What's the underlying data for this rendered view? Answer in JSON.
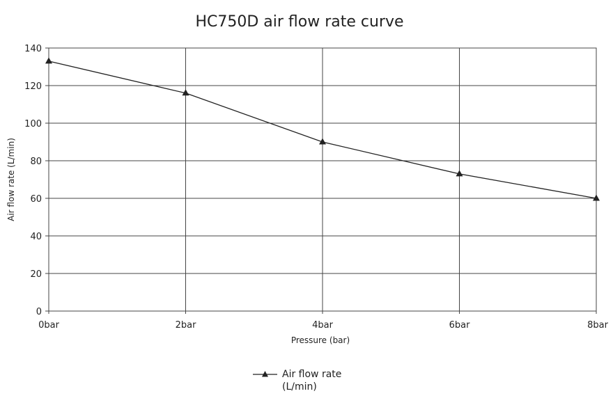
{
  "chart_data": {
    "type": "line",
    "title": "HC750D air flow rate curve",
    "xlabel": "Pressure (bar)",
    "ylabel": "Air flow rate (L/min)",
    "categories": [
      "0bar",
      "2bar",
      "4bar",
      "6bar",
      "8bar"
    ],
    "x": [
      0,
      2,
      4,
      6,
      8
    ],
    "xlim": [
      0,
      8
    ],
    "ylim": [
      0,
      140
    ],
    "yticks": [
      0,
      20,
      40,
      60,
      80,
      100,
      120,
      140
    ],
    "grid": true,
    "legend_position": "bottom",
    "series": [
      {
        "name": "Air flow rate (L/min)",
        "legend_lines": [
          "Air flow rate",
          "(L/min)"
        ],
        "marker": "triangle",
        "color": "#222222",
        "values": [
          133,
          116,
          90,
          73,
          60
        ]
      }
    ]
  }
}
